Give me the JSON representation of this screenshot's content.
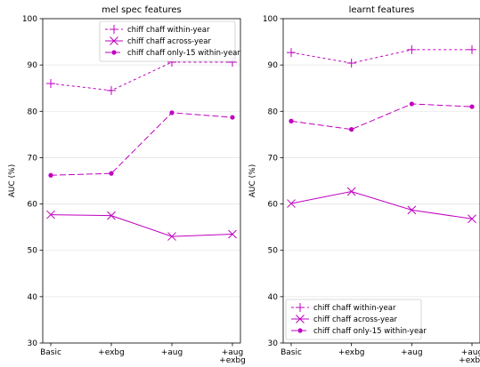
{
  "colors": {
    "series": "#c000c0",
    "grid": "#e6e6e6",
    "axis": "#000000"
  },
  "chart_data": [
    {
      "type": "line",
      "title": "mel spec features",
      "ylabel": "AUC (%)",
      "xlabel": "",
      "categories": [
        [
          "Basic"
        ],
        [
          "+exbg"
        ],
        [
          "+aug"
        ],
        [
          "+aug",
          "+exbg"
        ]
      ],
      "ylim": [
        30,
        100
      ],
      "yticks": [
        30,
        40,
        50,
        60,
        70,
        80,
        90,
        100
      ],
      "grid": "horizontal",
      "legend_position": "top-right",
      "series": [
        {
          "name": "chiff chaff within-year",
          "values": [
            86.0,
            84.5,
            90.6,
            90.6
          ],
          "marker": "plus",
          "linestyle": "dotted"
        },
        {
          "name": "chiff chaff across-year",
          "values": [
            57.7,
            57.5,
            53.0,
            53.5
          ],
          "marker": "x",
          "linestyle": "solid"
        },
        {
          "name": "chiff chaff only-15 within-year",
          "values": [
            66.2,
            66.6,
            79.7,
            78.7
          ],
          "marker": "dot",
          "linestyle": "dashed"
        }
      ]
    },
    {
      "type": "line",
      "title": "learnt features",
      "ylabel": "AUC (%)",
      "xlabel": "",
      "categories": [
        [
          "Basic"
        ],
        [
          "+exbg"
        ],
        [
          "+aug"
        ],
        [
          "+aug",
          "+exbg"
        ]
      ],
      "ylim": [
        30,
        100
      ],
      "yticks": [
        30,
        40,
        50,
        60,
        70,
        80,
        90,
        100
      ],
      "grid": "horizontal",
      "legend_position": "bottom-left",
      "series": [
        {
          "name": "chiff chaff within-year",
          "values": [
            92.7,
            90.4,
            93.3,
            93.3
          ],
          "marker": "plus",
          "linestyle": "dotted"
        },
        {
          "name": "chiff chaff across-year",
          "values": [
            60.1,
            62.7,
            58.7,
            56.8
          ],
          "marker": "x",
          "linestyle": "solid"
        },
        {
          "name": "chiff chaff only-15 within-year",
          "values": [
            77.9,
            76.1,
            81.6,
            81.0
          ],
          "marker": "dot",
          "linestyle": "dashed"
        }
      ]
    }
  ]
}
